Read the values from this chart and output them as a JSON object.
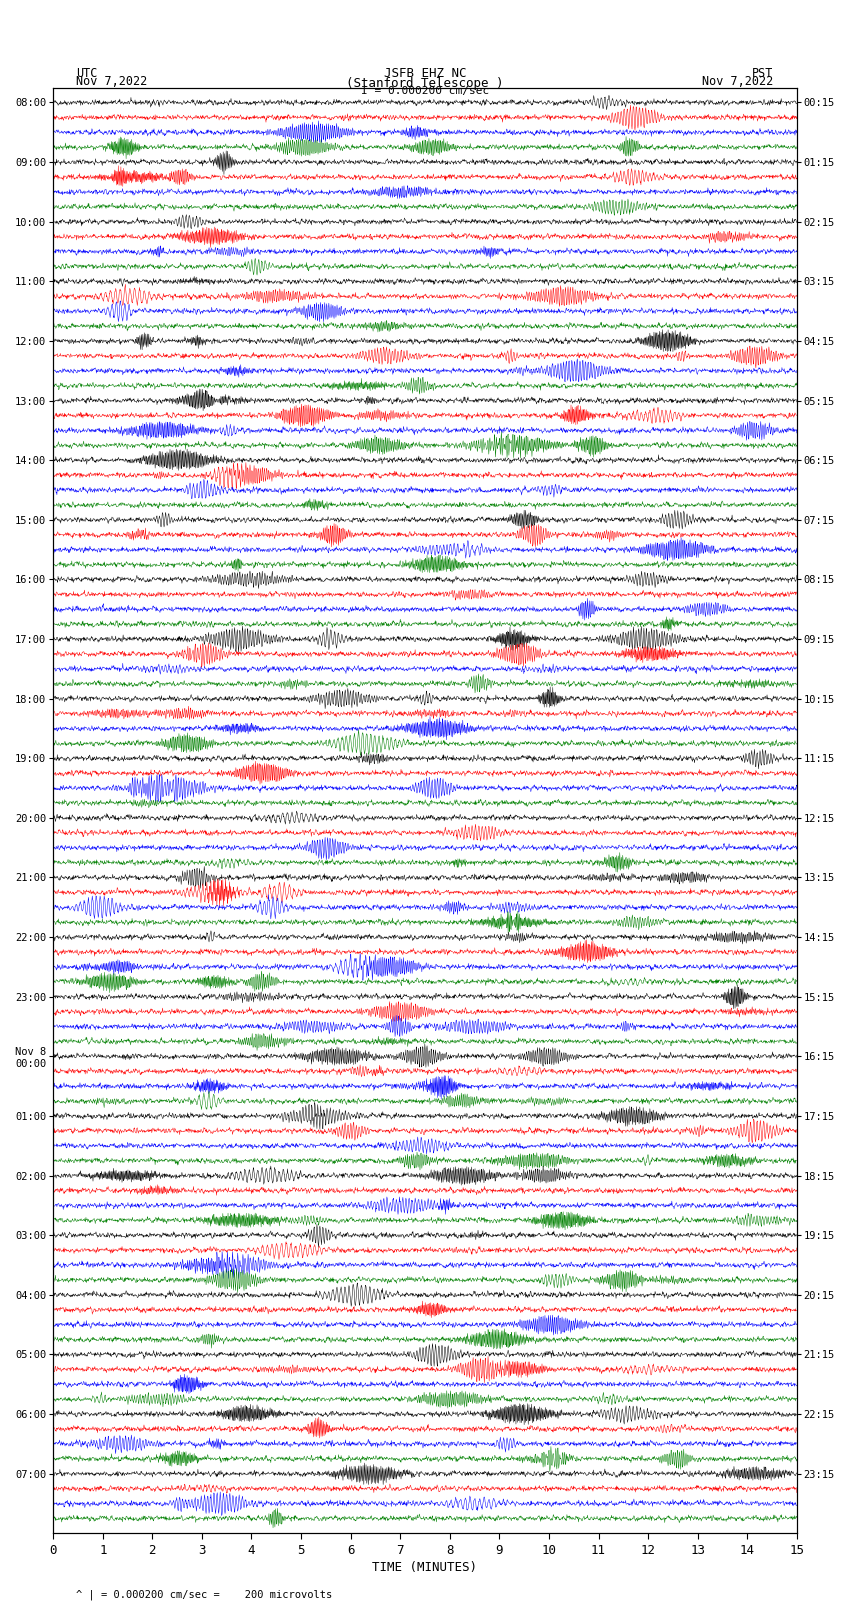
{
  "title_line1": "JSFB EHZ NC",
  "title_line2": "(Stanford Telescope )",
  "title_line3": "I = 0.000200 cm/sec",
  "left_label_line1": "UTC",
  "left_label_line2": "Nov 7,2022",
  "right_label_line1": "PST",
  "right_label_line2": "Nov 7,2022",
  "xlabel": "TIME (MINUTES)",
  "bottom_note": "^ | = 0.000200 cm/sec =    200 microvolts",
  "utc_times": [
    "08:00",
    "09:00",
    "10:00",
    "11:00",
    "12:00",
    "13:00",
    "14:00",
    "15:00",
    "16:00",
    "17:00",
    "18:00",
    "19:00",
    "20:00",
    "21:00",
    "22:00",
    "23:00",
    "Nov 8\n00:00",
    "01:00",
    "02:00",
    "03:00",
    "04:00",
    "05:00",
    "06:00",
    "07:00"
  ],
  "pst_times": [
    "00:15",
    "01:15",
    "02:15",
    "03:15",
    "04:15",
    "05:15",
    "06:15",
    "07:15",
    "08:15",
    "09:15",
    "10:15",
    "11:15",
    "12:15",
    "13:15",
    "14:15",
    "15:15",
    "16:15",
    "17:15",
    "18:15",
    "19:15",
    "20:15",
    "21:15",
    "22:15",
    "23:15"
  ],
  "colors": [
    "black",
    "red",
    "blue",
    "green"
  ],
  "n_rows": 24,
  "traces_per_row": 4,
  "xlim": [
    0,
    15
  ],
  "xticks": [
    0,
    1,
    2,
    3,
    4,
    5,
    6,
    7,
    8,
    9,
    10,
    11,
    12,
    13,
    14,
    15
  ],
  "bg_color": "white",
  "trace_amplitude": 0.3,
  "noise_scale": 0.12,
  "seed": 42,
  "fig_width": 8.5,
  "fig_height": 16.13,
  "dpi": 100
}
